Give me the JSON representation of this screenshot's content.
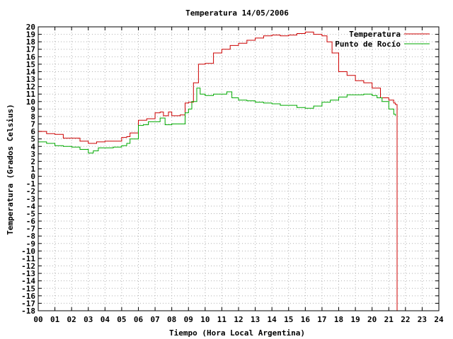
{
  "chart_data": {
    "type": "line",
    "title": "Temperatura 14/05/2006",
    "xlabel": "Tiempo (Hora Local Argentina)",
    "ylabel": "Temperatura (Grados Celsius)",
    "xlim": [
      0,
      24
    ],
    "ylim": [
      -18,
      20
    ],
    "x_ticks": [
      "00",
      "01",
      "02",
      "03",
      "04",
      "05",
      "06",
      "07",
      "08",
      "09",
      "10",
      "11",
      "12",
      "13",
      "14",
      "15",
      "16",
      "17",
      "18",
      "19",
      "20",
      "21",
      "22",
      "23",
      "24"
    ],
    "y_ticks": [
      -18,
      -17,
      -16,
      -15,
      -14,
      -13,
      -12,
      -11,
      -10,
      -9,
      -8,
      -7,
      -6,
      -5,
      -4,
      -3,
      -2,
      -1,
      0,
      1,
      2,
      3,
      4,
      5,
      6,
      7,
      8,
      9,
      10,
      11,
      12,
      13,
      14,
      15,
      16,
      17,
      18,
      19,
      20
    ],
    "grid": true,
    "legend_position": "top-right",
    "series": [
      {
        "name": "Temperatura",
        "color": "#cc0000",
        "x": [
          0,
          0.5,
          1,
          1.5,
          2,
          2.5,
          3,
          3.5,
          4,
          4.5,
          5,
          5.3,
          5.5,
          6,
          6.5,
          7,
          7.3,
          7.5,
          7.8,
          8,
          8.5,
          8.8,
          9,
          9.3,
          9.6,
          10,
          10.5,
          11,
          11.5,
          12,
          12.5,
          13,
          13.5,
          14,
          14.5,
          15,
          15.5,
          16,
          16.5,
          17,
          17.3,
          17.6,
          18,
          18.5,
          19,
          19.5,
          20,
          20.5,
          21,
          21.3,
          21.4,
          21.5
        ],
        "y": [
          6.0,
          5.7,
          5.6,
          5.1,
          5.1,
          4.7,
          4.4,
          4.6,
          4.7,
          4.7,
          5.2,
          5.3,
          5.8,
          7.5,
          7.7,
          8.5,
          8.6,
          8.1,
          8.6,
          8.1,
          8.2,
          9.8,
          9.9,
          12.5,
          15.0,
          15.1,
          16.5,
          17.0,
          17.5,
          17.8,
          18.2,
          18.5,
          18.8,
          18.9,
          18.8,
          18.9,
          19.1,
          19.3,
          19.0,
          18.8,
          18.0,
          16.5,
          14.0,
          13.5,
          12.8,
          12.5,
          11.8,
          10.5,
          10.2,
          9.8,
          9.6,
          -18.0
        ]
      },
      {
        "name": "Punto de Rocío",
        "color": "#00aa00",
        "x": [
          0,
          0.5,
          1,
          1.5,
          2,
          2.5,
          3,
          3.3,
          3.6,
          4,
          4.5,
          5,
          5.3,
          5.5,
          6,
          6.3,
          6.6,
          7,
          7.3,
          7.6,
          8,
          8.5,
          8.8,
          9,
          9.2,
          9.5,
          9.7,
          10,
          10.5,
          11,
          11.3,
          11.6,
          12,
          12.5,
          13,
          13.5,
          14,
          14.5,
          15,
          15.5,
          16,
          16.5,
          17,
          17.5,
          18,
          18.5,
          19,
          19.5,
          20,
          20.3,
          20.6,
          21,
          21.3,
          21.4
        ],
        "y": [
          4.6,
          4.4,
          4.1,
          4.0,
          3.9,
          3.6,
          3.1,
          3.4,
          3.8,
          3.8,
          3.9,
          4.1,
          4.4,
          5.0,
          6.8,
          6.9,
          7.3,
          7.3,
          7.8,
          6.9,
          7.0,
          7.0,
          8.5,
          9.0,
          10.0,
          11.8,
          11.0,
          10.8,
          11.0,
          11.0,
          11.3,
          10.5,
          10.2,
          10.1,
          9.9,
          9.8,
          9.7,
          9.5,
          9.5,
          9.2,
          9.1,
          9.4,
          9.9,
          10.2,
          10.6,
          10.9,
          10.9,
          11.0,
          10.8,
          10.5,
          10.0,
          9.0,
          8.3,
          8.1
        ]
      }
    ]
  }
}
